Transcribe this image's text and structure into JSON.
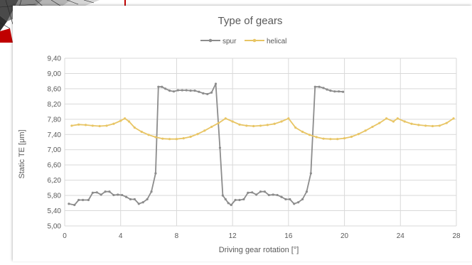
{
  "colors": {
    "spur": "#8c8c8c",
    "helical": "#e8c565",
    "grid": "#d9d9d9",
    "text": "#595959",
    "accent_red": "#c00000"
  },
  "chart_data": {
    "type": "line",
    "title": "Type of gears",
    "xlabel": "Driving gear rotation [°]",
    "ylabel": "Static TE [μm]",
    "xlim": [
      0,
      28
    ],
    "ylim": [
      5.0,
      9.4
    ],
    "xticks": [
      0,
      4,
      8,
      12,
      16,
      20,
      24,
      28
    ],
    "xtick_labels": [
      "0",
      "4",
      "8",
      "12",
      "16",
      "20",
      "24",
      "28"
    ],
    "yticks": [
      5.0,
      5.4,
      5.8,
      6.2,
      6.6,
      7.0,
      7.4,
      7.8,
      8.2,
      8.6,
      9.0,
      9.4
    ],
    "ytick_labels": [
      "5,00",
      "5,40",
      "5,80",
      "6,20",
      "6,60",
      "7,00",
      "7,40",
      "7,80",
      "8,20",
      "8,60",
      "9,00",
      "9,40"
    ],
    "grid": true,
    "legend_position": "top-center",
    "series": [
      {
        "name": "spur",
        "marker": "circle",
        "x": [
          0.3,
          0.7,
          1.0,
          1.3,
          1.7,
          2.0,
          2.3,
          2.6,
          2.9,
          3.2,
          3.5,
          3.8,
          4.1,
          4.4,
          4.7,
          5.0,
          5.3,
          5.6,
          5.9,
          6.2,
          6.5,
          6.7,
          6.95,
          7.2,
          7.5,
          7.8,
          8.1,
          8.4,
          8.7,
          9.0,
          9.3,
          9.6,
          9.9,
          10.2,
          10.5,
          10.8,
          11.1,
          11.3,
          11.5,
          11.7,
          11.9,
          12.2,
          12.5,
          12.8,
          13.1,
          13.4,
          13.7,
          14.0,
          14.3,
          14.6,
          14.9,
          15.2,
          15.5,
          15.8,
          16.1,
          16.4,
          16.7,
          17.0,
          17.3,
          17.6,
          17.9,
          18.2,
          18.5,
          18.75,
          19.0,
          19.3,
          19.6,
          19.9
        ],
        "y": [
          5.58,
          5.55,
          5.68,
          5.68,
          5.68,
          5.87,
          5.88,
          5.82,
          5.9,
          5.9,
          5.81,
          5.82,
          5.81,
          5.76,
          5.7,
          5.7,
          5.58,
          5.62,
          5.7,
          5.9,
          6.38,
          8.65,
          8.65,
          8.6,
          8.55,
          8.53,
          8.56,
          8.56,
          8.56,
          8.55,
          8.55,
          8.52,
          8.48,
          8.46,
          8.5,
          8.73,
          7.05,
          5.8,
          5.7,
          5.6,
          5.55,
          5.68,
          5.68,
          5.7,
          5.87,
          5.88,
          5.82,
          5.9,
          5.9,
          5.81,
          5.82,
          5.81,
          5.76,
          5.7,
          5.7,
          5.58,
          5.62,
          5.7,
          5.9,
          6.38,
          8.65,
          8.65,
          8.62,
          8.58,
          8.55,
          8.53,
          8.53,
          8.52
        ]
      },
      {
        "name": "helical",
        "marker": "circle",
        "x": [
          0.5,
          1.0,
          1.5,
          2.0,
          2.5,
          3.0,
          3.5,
          4.0,
          4.3,
          4.6,
          5.0,
          5.5,
          6.0,
          6.5,
          7.0,
          7.5,
          8.0,
          8.5,
          9.0,
          9.5,
          10.0,
          10.5,
          11.0,
          11.5,
          12.0,
          12.5,
          13.0,
          13.5,
          14.0,
          14.5,
          15.0,
          15.5,
          16.0,
          16.5,
          17.0,
          17.5,
          18.0,
          18.5,
          19.0,
          19.5,
          20.0,
          20.5,
          21.0,
          21.5,
          22.0,
          22.5,
          23.0,
          23.5,
          23.8,
          24.3,
          24.8,
          25.3,
          25.8,
          26.3,
          26.8,
          27.3,
          27.8
        ],
        "y": [
          7.63,
          7.66,
          7.65,
          7.63,
          7.62,
          7.63,
          7.68,
          7.76,
          7.82,
          7.74,
          7.58,
          7.47,
          7.39,
          7.33,
          7.29,
          7.28,
          7.28,
          7.3,
          7.34,
          7.41,
          7.5,
          7.6,
          7.7,
          7.82,
          7.74,
          7.66,
          7.63,
          7.62,
          7.63,
          7.65,
          7.68,
          7.74,
          7.82,
          7.58,
          7.47,
          7.39,
          7.33,
          7.29,
          7.28,
          7.28,
          7.3,
          7.34,
          7.41,
          7.5,
          7.6,
          7.7,
          7.82,
          7.74,
          7.82,
          7.74,
          7.68,
          7.65,
          7.63,
          7.62,
          7.63,
          7.7,
          7.82
        ]
      }
    ]
  }
}
